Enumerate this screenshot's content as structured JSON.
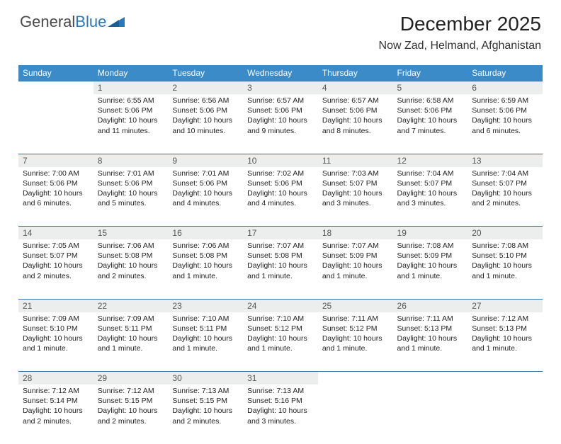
{
  "brand": {
    "part1": "General",
    "part2": "Blue"
  },
  "title": "December 2025",
  "location": "Now Zad, Helmand, Afghanistan",
  "colors": {
    "header_bg": "#3b8bc9",
    "rule": "#2f6fa8",
    "daynum_bg": "#eceded",
    "text": "#222222",
    "logo_gray": "#4a4a4a",
    "logo_blue": "#2878bd"
  },
  "weekdays": [
    "Sunday",
    "Monday",
    "Tuesday",
    "Wednesday",
    "Thursday",
    "Friday",
    "Saturday"
  ],
  "weeks": [
    {
      "nums": [
        "",
        "1",
        "2",
        "3",
        "4",
        "5",
        "6"
      ],
      "cells": [
        null,
        {
          "sunrise": "6:55 AM",
          "sunset": "5:06 PM",
          "daylight": "10 hours and 11 minutes."
        },
        {
          "sunrise": "6:56 AM",
          "sunset": "5:06 PM",
          "daylight": "10 hours and 10 minutes."
        },
        {
          "sunrise": "6:57 AM",
          "sunset": "5:06 PM",
          "daylight": "10 hours and 9 minutes."
        },
        {
          "sunrise": "6:57 AM",
          "sunset": "5:06 PM",
          "daylight": "10 hours and 8 minutes."
        },
        {
          "sunrise": "6:58 AM",
          "sunset": "5:06 PM",
          "daylight": "10 hours and 7 minutes."
        },
        {
          "sunrise": "6:59 AM",
          "sunset": "5:06 PM",
          "daylight": "10 hours and 6 minutes."
        }
      ]
    },
    {
      "nums": [
        "7",
        "8",
        "9",
        "10",
        "11",
        "12",
        "13"
      ],
      "cells": [
        {
          "sunrise": "7:00 AM",
          "sunset": "5:06 PM",
          "daylight": "10 hours and 6 minutes."
        },
        {
          "sunrise": "7:01 AM",
          "sunset": "5:06 PM",
          "daylight": "10 hours and 5 minutes."
        },
        {
          "sunrise": "7:01 AM",
          "sunset": "5:06 PM",
          "daylight": "10 hours and 4 minutes."
        },
        {
          "sunrise": "7:02 AM",
          "sunset": "5:06 PM",
          "daylight": "10 hours and 4 minutes."
        },
        {
          "sunrise": "7:03 AM",
          "sunset": "5:07 PM",
          "daylight": "10 hours and 3 minutes."
        },
        {
          "sunrise": "7:04 AM",
          "sunset": "5:07 PM",
          "daylight": "10 hours and 3 minutes."
        },
        {
          "sunrise": "7:04 AM",
          "sunset": "5:07 PM",
          "daylight": "10 hours and 2 minutes."
        }
      ]
    },
    {
      "nums": [
        "14",
        "15",
        "16",
        "17",
        "18",
        "19",
        "20"
      ],
      "cells": [
        {
          "sunrise": "7:05 AM",
          "sunset": "5:07 PM",
          "daylight": "10 hours and 2 minutes."
        },
        {
          "sunrise": "7:06 AM",
          "sunset": "5:08 PM",
          "daylight": "10 hours and 2 minutes."
        },
        {
          "sunrise": "7:06 AM",
          "sunset": "5:08 PM",
          "daylight": "10 hours and 1 minute."
        },
        {
          "sunrise": "7:07 AM",
          "sunset": "5:08 PM",
          "daylight": "10 hours and 1 minute."
        },
        {
          "sunrise": "7:07 AM",
          "sunset": "5:09 PM",
          "daylight": "10 hours and 1 minute."
        },
        {
          "sunrise": "7:08 AM",
          "sunset": "5:09 PM",
          "daylight": "10 hours and 1 minute."
        },
        {
          "sunrise": "7:08 AM",
          "sunset": "5:10 PM",
          "daylight": "10 hours and 1 minute."
        }
      ]
    },
    {
      "nums": [
        "21",
        "22",
        "23",
        "24",
        "25",
        "26",
        "27"
      ],
      "cells": [
        {
          "sunrise": "7:09 AM",
          "sunset": "5:10 PM",
          "daylight": "10 hours and 1 minute."
        },
        {
          "sunrise": "7:09 AM",
          "sunset": "5:11 PM",
          "daylight": "10 hours and 1 minute."
        },
        {
          "sunrise": "7:10 AM",
          "sunset": "5:11 PM",
          "daylight": "10 hours and 1 minute."
        },
        {
          "sunrise": "7:10 AM",
          "sunset": "5:12 PM",
          "daylight": "10 hours and 1 minute."
        },
        {
          "sunrise": "7:11 AM",
          "sunset": "5:12 PM",
          "daylight": "10 hours and 1 minute."
        },
        {
          "sunrise": "7:11 AM",
          "sunset": "5:13 PM",
          "daylight": "10 hours and 1 minute."
        },
        {
          "sunrise": "7:12 AM",
          "sunset": "5:13 PM",
          "daylight": "10 hours and 1 minute."
        }
      ]
    },
    {
      "nums": [
        "28",
        "29",
        "30",
        "31",
        "",
        "",
        ""
      ],
      "cells": [
        {
          "sunrise": "7:12 AM",
          "sunset": "5:14 PM",
          "daylight": "10 hours and 2 minutes."
        },
        {
          "sunrise": "7:12 AM",
          "sunset": "5:15 PM",
          "daylight": "10 hours and 2 minutes."
        },
        {
          "sunrise": "7:13 AM",
          "sunset": "5:15 PM",
          "daylight": "10 hours and 2 minutes."
        },
        {
          "sunrise": "7:13 AM",
          "sunset": "5:16 PM",
          "daylight": "10 hours and 3 minutes."
        },
        null,
        null,
        null
      ]
    }
  ],
  "labels": {
    "sunrise": "Sunrise: ",
    "sunset": "Sunset: ",
    "daylight": "Daylight: "
  }
}
